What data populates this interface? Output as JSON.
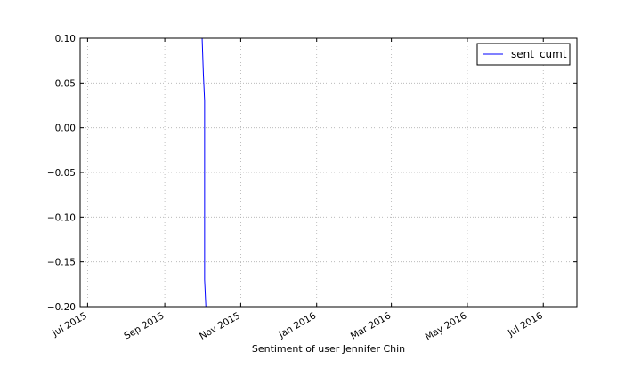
{
  "chart_data": {
    "type": "line",
    "title": "",
    "xlabel": "Sentiment of user Jennifer Chin",
    "ylabel": "",
    "xlim": [
      "2015-06-25",
      "2016-07-28"
    ],
    "ylim": [
      -0.2,
      0.1
    ],
    "x_tick_labels": [
      "Jul 2015",
      "Sep 2015",
      "Nov 2015",
      "Jan 2016",
      "Mar 2016",
      "May 2016",
      "Jul 2016"
    ],
    "x_tick_dates": [
      "2015-07-01",
      "2015-09-01",
      "2015-11-01",
      "2016-01-01",
      "2016-03-01",
      "2016-05-01",
      "2016-07-01"
    ],
    "y_ticks": [
      0.1,
      0.05,
      0.0,
      -0.05,
      -0.1,
      -0.15,
      -0.2
    ],
    "y_tick_labels": [
      "0.10",
      "0.05",
      "0.00",
      "−0.05",
      "−0.10",
      "−0.15",
      "−0.20"
    ],
    "grid": true,
    "legend_position": "top-right",
    "series": [
      {
        "name": "sent_cumt",
        "color": "#0000ff",
        "x": [
          "2015-10-01",
          "2015-10-02",
          "2015-10-03",
          "2015-10-03",
          "2015-10-03",
          "2015-10-04"
        ],
        "y": [
          0.1,
          0.06,
          0.03,
          -0.07,
          -0.17,
          -0.2
        ]
      }
    ]
  }
}
